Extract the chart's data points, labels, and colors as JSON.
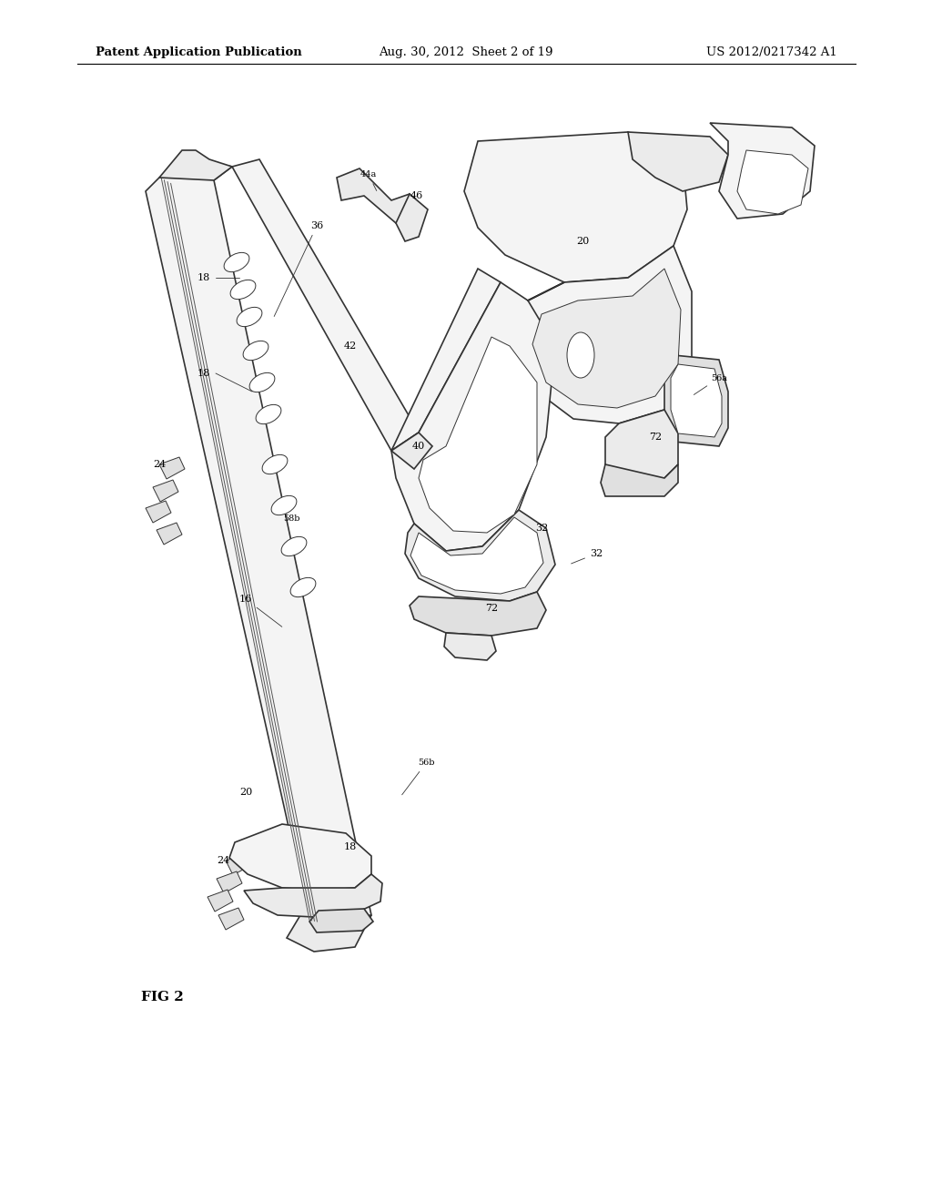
{
  "background_color": "#ffffff",
  "header_left": "Patent Application Publication",
  "header_center": "Aug. 30, 2012  Sheet 2 of 19",
  "header_right": "US 2012/0217342 A1",
  "figure_label": "FIG 2",
  "line_color": "#333333",
  "lw_main": 1.2,
  "lw_thin": 0.7,
  "face_light": "#f4f4f4",
  "face_mid": "#ebebeb",
  "face_dark": "#e0e0e0"
}
